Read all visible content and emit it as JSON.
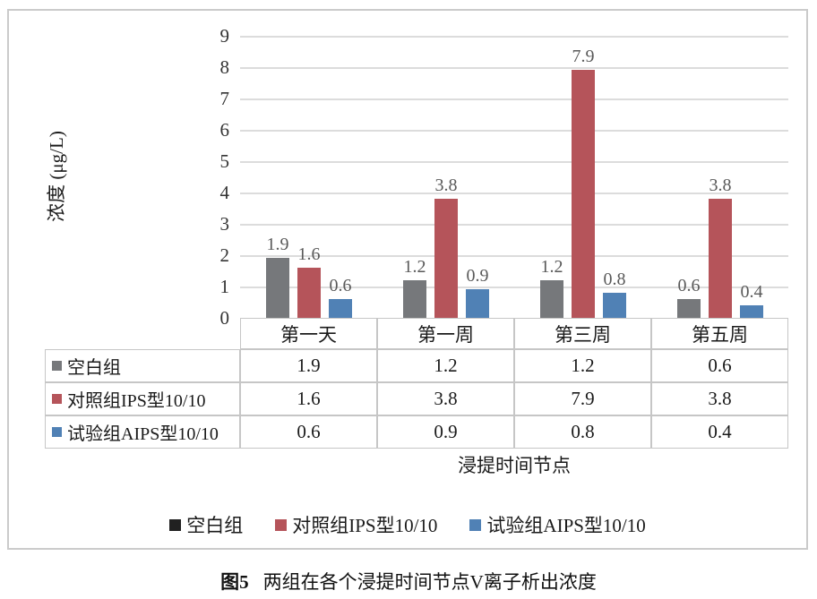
{
  "chart_data": {
    "type": "bar",
    "categories": [
      "第一天",
      "第一周",
      "第三周",
      "第五周"
    ],
    "series": [
      {
        "name": "空白组",
        "values": [
          1.9,
          1.2,
          1.2,
          0.6
        ],
        "color": "#76787B",
        "legend_color": "#212121"
      },
      {
        "name": "对照组IPS型10/10",
        "values": [
          1.6,
          3.8,
          7.9,
          3.8
        ],
        "color": "#B5545A",
        "legend_color": "#B5545A"
      },
      {
        "name": "试验组AIPS型10/10",
        "values": [
          0.6,
          0.9,
          0.8,
          0.4
        ],
        "color": "#5081B5",
        "legend_color": "#5081B5"
      }
    ],
    "ylabel": "浓度 (μg/L)",
    "xlabel": "浸提时间节点",
    "ylim": [
      0,
      9
    ],
    "ytick_step": 1,
    "grid": true,
    "legend_position": "bottom",
    "show_data_table": true,
    "value_label_decimals": 1
  },
  "caption": {
    "label": "图5",
    "text": "两组在各个浸提时间节点V离子析出浓度"
  },
  "styles": {
    "grid_color": "#DCDCDC",
    "table_border_color": "#C6C6C6",
    "frame_border_color": "#CBCBCB",
    "value_label_color": "#595959",
    "tick_label_color": "#333333"
  }
}
